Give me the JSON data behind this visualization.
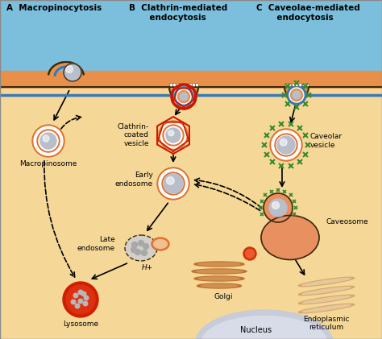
{
  "bg_sky": "#7bbfdc",
  "bg_cell_top": "#e8904a",
  "bg_cytoplasm": "#f5d898",
  "membrane_dark": "#3a2a10",
  "membrane_orange": "#e07030",
  "blue_inner": "#3878b8",
  "vesicle_outer_ring": "#e07030",
  "vesicle_white_ring": "#ffffff",
  "vesicle_inner_ring": "#cc5820",
  "vesicle_cargo": "#b8beca",
  "vesicle_cargo_hi": "#d8dce8",
  "clathrin_red": "#cc1800",
  "caveolae_green": "#3a8a28",
  "lysosome_red": "#cc2000",
  "lysosome_inner": "#dd3010",
  "golgi_dark": "#c07030",
  "golgi_light": "#d09050",
  "nucleus_fill": "#c8ccd8",
  "nucleus_border": "#a0a8b8",
  "late_endo_fill": "#d4d0c8",
  "caveosome_fill": "#e89060",
  "title_A": "A  Macropinocytosis",
  "title_B": "B  Clathrin-mediated\n       endocytosis",
  "title_C": "C  Caveolae-mediated\n       endocytosis",
  "label_macropinosome": "Macropinosome",
  "label_clathrin": "Clathrin-\ncoated\nvesicle",
  "label_early": "Early\nendosome",
  "label_late": "Late\nendosome",
  "label_lysosome": "Lysosome",
  "label_golgi": "Golgi",
  "label_nucleus": "Nucleus",
  "label_caveolar": "Caveolar\nvesicle",
  "label_caveosome": "Caveosome",
  "label_er": "Endoplasmic\nreticulum",
  "label_hplus": "H+",
  "font_size_title": 7.5,
  "font_size_label": 6.5,
  "dpi": 100,
  "fig_width": 4.74,
  "fig_height": 4.21
}
